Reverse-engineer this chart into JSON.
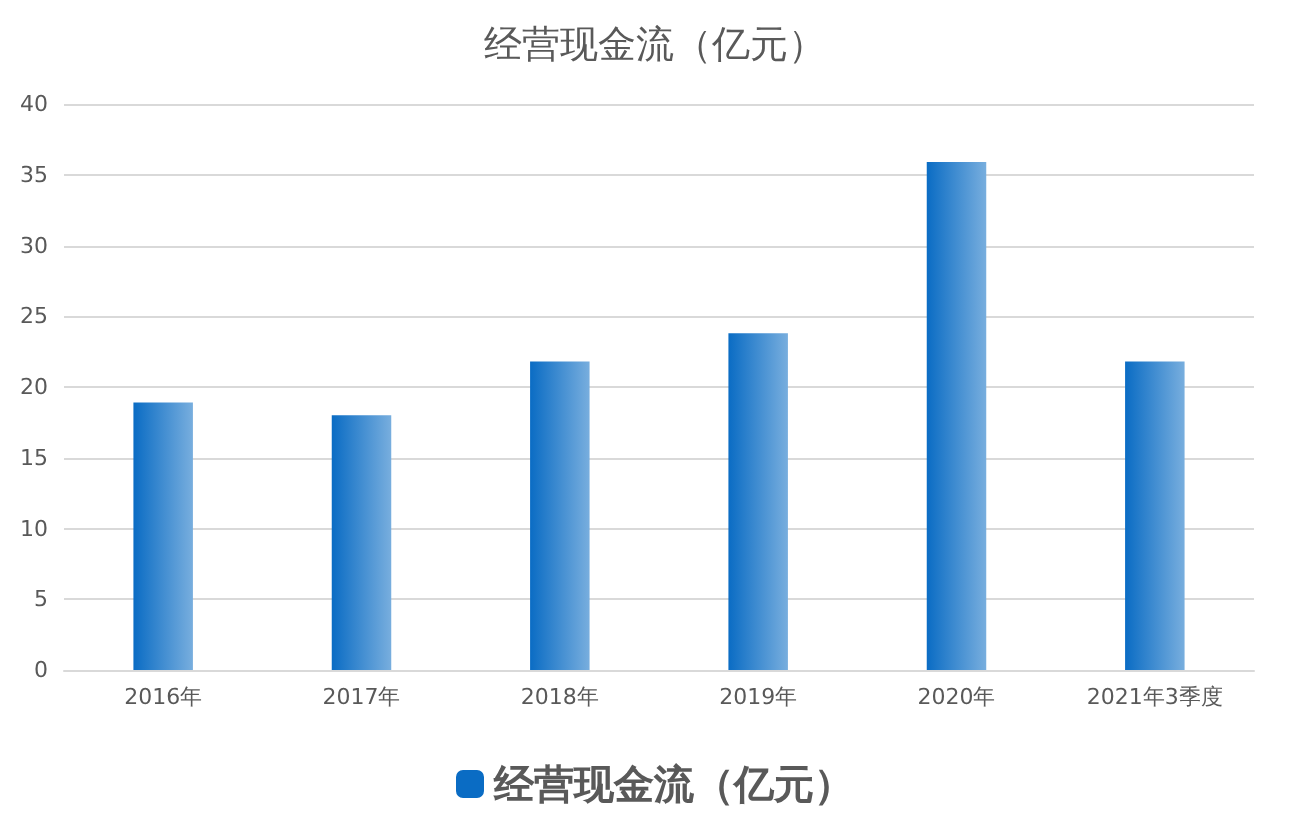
{
  "chart_data": {
    "type": "bar",
    "title": "经营现金流（亿元）",
    "categories": [
      "2016年",
      "2017年",
      "2018年",
      "2019年",
      "2020年",
      "2021年3季度"
    ],
    "series": [
      {
        "name": "经营现金流（亿元）",
        "color": "#0a6cc4",
        "values": [
          18.9,
          18.0,
          21.8,
          23.8,
          35.9,
          21.8
        ]
      }
    ],
    "ylim": [
      0,
      40
    ],
    "yticks": [
      0,
      5,
      10,
      15,
      20,
      25,
      30,
      35,
      40
    ],
    "grid": "y",
    "legend": "bottom"
  }
}
